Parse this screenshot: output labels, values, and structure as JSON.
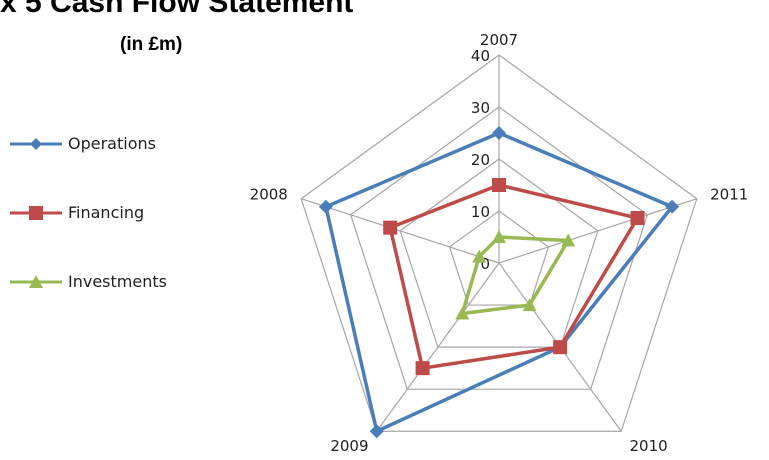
{
  "title": "x 5 Cash Flow Statement",
  "subtitle": "(in £m)",
  "chart_data": {
    "type": "radar",
    "categories": [
      "2007",
      "2011",
      "2010",
      "2009",
      "2008"
    ],
    "ticks": [
      "0",
      "10",
      "20",
      "30",
      "40"
    ],
    "rlim": [
      0,
      40
    ],
    "grid": true,
    "legend_position": "left",
    "series": [
      {
        "name": "Operations",
        "color": "#4a7ebb",
        "marker": "diamond",
        "values": [
          25,
          35,
          20,
          40,
          35
        ]
      },
      {
        "name": "Financing",
        "color": "#be4b48",
        "marker": "square",
        "values": [
          15,
          28,
          20,
          25,
          22
        ]
      },
      {
        "name": "Investments",
        "color": "#98b954",
        "marker": "triangle",
        "values": [
          5,
          14,
          10,
          12,
          4
        ]
      }
    ]
  }
}
